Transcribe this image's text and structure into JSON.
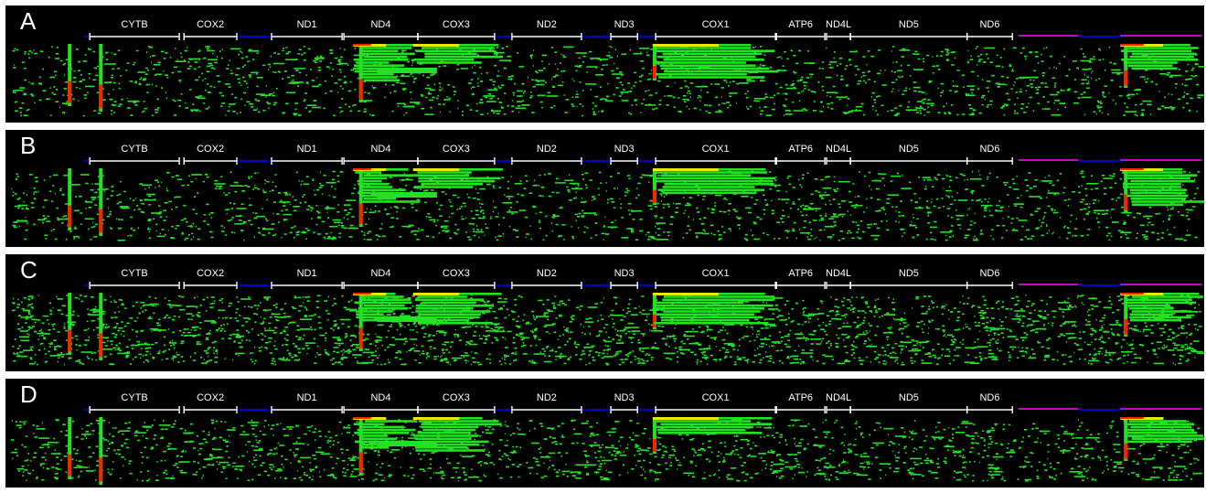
{
  "panels": [
    {
      "id": "A",
      "label": "A"
    },
    {
      "id": "B",
      "label": "B"
    },
    {
      "id": "C",
      "label": "C"
    },
    {
      "id": "D",
      "label": "D"
    }
  ],
  "genes": [
    {
      "name": "CYTB",
      "start": 0.0703,
      "end": 0.145
    },
    {
      "name": "COX2",
      "start": 0.1489,
      "end": 0.193
    },
    {
      "name": "ND1",
      "start": 0.222,
      "end": 0.2808
    },
    {
      "name": "ND4",
      "start": 0.2823,
      "end": 0.344
    },
    {
      "name": "COX3",
      "start": 0.344,
      "end": 0.408
    },
    {
      "name": "ND2",
      "start": 0.4225,
      "end": 0.4805
    },
    {
      "name": "ND3",
      "start": 0.505,
      "end": 0.5272
    },
    {
      "name": "COX1",
      "start": 0.5424,
      "end": 0.6423
    },
    {
      "name": "ATP6",
      "start": 0.6432,
      "end": 0.6835
    },
    {
      "name": "ND4L",
      "start": 0.685,
      "end": 0.7049
    },
    {
      "name": "ND5",
      "start": 0.7049,
      "end": 0.8022
    },
    {
      "name": "ND6",
      "start": 0.8022,
      "end": 0.84
    }
  ],
  "colors": {
    "background": "#000000",
    "reads_low": "#22e322",
    "reads_mid": "#e8e800",
    "reads_high": "#ff2200",
    "gene_track": "#ffffff",
    "noncoding_track": "#0000cc",
    "control_region": "#cc00cc"
  }
}
